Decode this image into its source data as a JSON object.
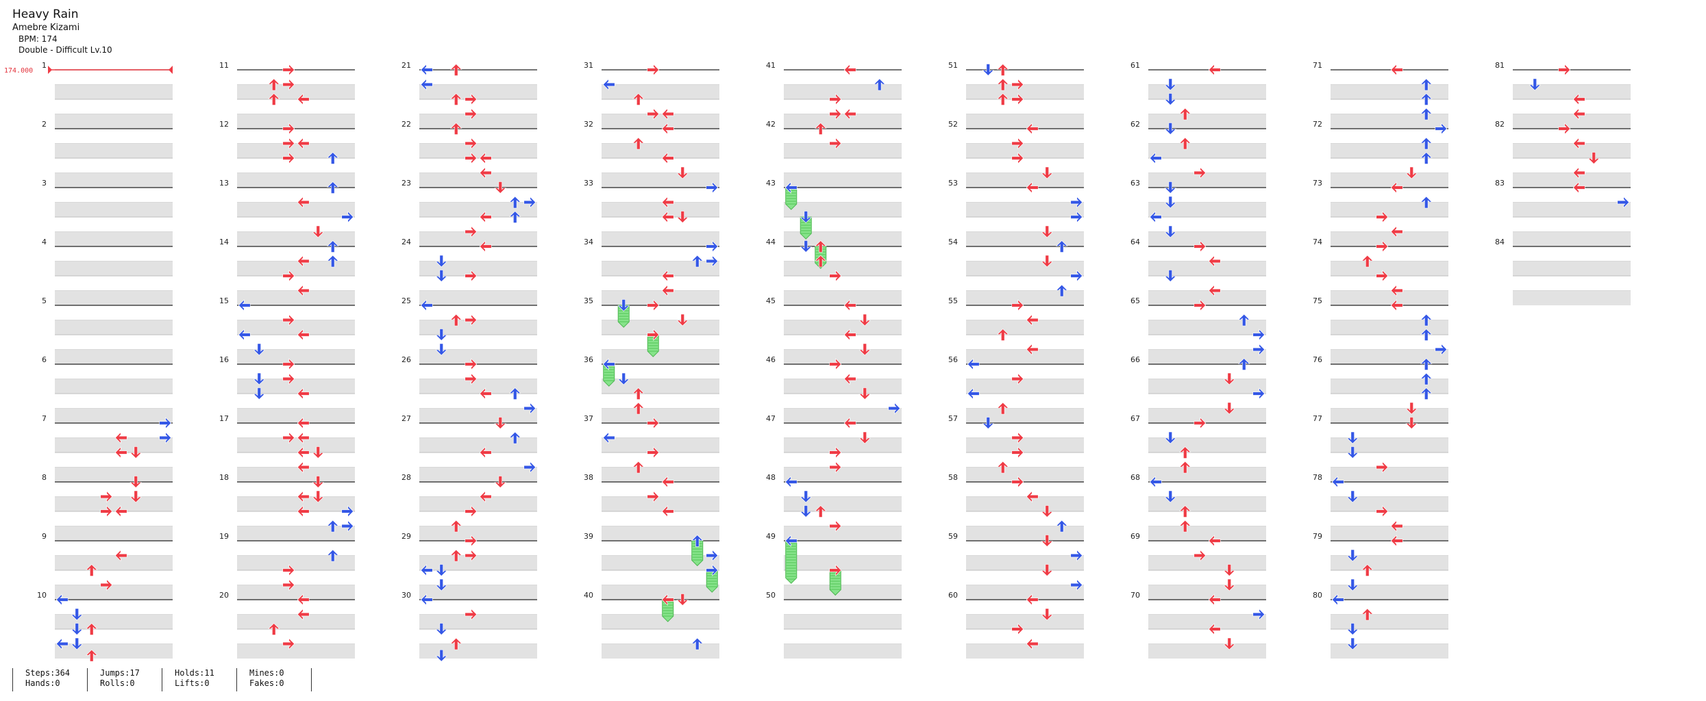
{
  "song": {
    "title": "Heavy Rain",
    "artist": "Amebre Kizami",
    "bpm_text": "BPM: 174",
    "difficulty_text": "Double - Difficult  Lv.10"
  },
  "bpm_marker": "174.000",
  "colors": {
    "red": "#ef3b45",
    "blue": "#3457e6",
    "hold": "#86e38a"
  },
  "measures": [
    "1",
    "2",
    "3",
    "4",
    "5",
    "6",
    "7",
    "8",
    "9",
    "10",
    "11",
    "12",
    "13",
    "14",
    "15",
    "16",
    "17",
    "18",
    "19",
    "20",
    "21",
    "22",
    "23",
    "24",
    "25",
    "26",
    "27",
    "28",
    "29",
    "30",
    "31",
    "32",
    "33",
    "34",
    "35",
    "36",
    "37",
    "38",
    "39",
    "40",
    "41",
    "42",
    "43",
    "44",
    "45",
    "46",
    "47",
    "48",
    "49",
    "50",
    "51",
    "52",
    "53",
    "54",
    "55",
    "56",
    "57",
    "58",
    "59",
    "60",
    "61",
    "62",
    "63",
    "64",
    "65",
    "66",
    "67",
    "68",
    "69",
    "70",
    "71",
    "72",
    "73",
    "74",
    "75",
    "76",
    "77",
    "78",
    "79",
    "80",
    "81",
    "82",
    "83",
    "84"
  ],
  "stats": [
    {
      "top": "Steps:364",
      "bottom": "Hands:0"
    },
    {
      "top": "Jumps:17",
      "bottom": "Rolls:0"
    },
    {
      "top": "Holds:11",
      "bottom": "Lifts:0"
    },
    {
      "top": "Mines:0",
      "bottom": "Fakes:0"
    }
  ]
}
